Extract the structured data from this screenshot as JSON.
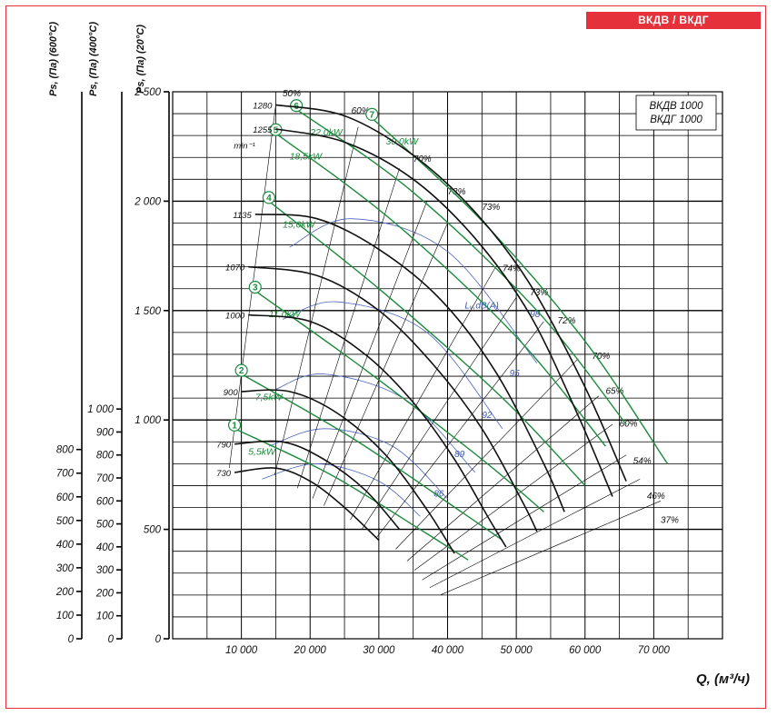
{
  "header_tag": "ВКДВ / ВКДГ",
  "chart_data": {
    "type": "line",
    "models": [
      "ВКДВ 1000",
      "ВКДГ 1000"
    ],
    "xlabel": "Q, (м³/ч)",
    "xlim": [
      0,
      80000
    ],
    "x_ticks": [
      10000,
      20000,
      30000,
      40000,
      50000,
      60000,
      70000
    ],
    "x_tick_labels": [
      "10 000",
      "20 000",
      "30 000",
      "40 000",
      "50 000",
      "60 000",
      "70 000"
    ],
    "ylim": [
      0,
      2500
    ],
    "y_axes": [
      {
        "title": "Ps, (Па) (20°C)",
        "ticks": [
          0,
          500,
          1000,
          1500,
          2000,
          2500
        ],
        "tick_labels": [
          "0",
          "500",
          "1 000",
          "1 500",
          "2 000",
          "2 500"
        ]
      },
      {
        "title": "Ps, (Па) (400°C)",
        "ticks": [
          0,
          100,
          200,
          300,
          400,
          500,
          600,
          700,
          800,
          900,
          1000
        ],
        "tick_labels": [
          "0",
          "100",
          "200",
          "300",
          "400",
          "500",
          "600",
          "700",
          "800",
          "900",
          "1 000"
        ]
      },
      {
        "title": "Ps, (Па) (600°C)",
        "ticks": [
          0,
          100,
          200,
          300,
          400,
          500,
          600,
          700,
          800
        ],
        "tick_labels": [
          "0",
          "100",
          "200",
          "300",
          "400",
          "500",
          "600",
          "700",
          "800"
        ]
      }
    ],
    "rpm_unit": "min⁻¹",
    "speed_curves": [
      {
        "rpm": "730",
        "points": [
          [
            9000,
            760
          ],
          [
            15000,
            780
          ],
          [
            20000,
            720
          ],
          [
            25000,
            600
          ],
          [
            30000,
            450
          ]
        ]
      },
      {
        "rpm": "790",
        "points": [
          [
            9000,
            890
          ],
          [
            16000,
            900
          ],
          [
            22000,
            820
          ],
          [
            28000,
            680
          ],
          [
            33000,
            500
          ]
        ]
      },
      {
        "rpm": "900",
        "points": [
          [
            10000,
            1130
          ],
          [
            17000,
            1130
          ],
          [
            24000,
            1030
          ],
          [
            31000,
            840
          ],
          [
            37000,
            590
          ],
          [
            41000,
            390
          ]
        ]
      },
      {
        "rpm": "1000",
        "points": [
          [
            11000,
            1480
          ],
          [
            20000,
            1450
          ],
          [
            28000,
            1300
          ],
          [
            35000,
            1080
          ],
          [
            41000,
            820
          ],
          [
            46000,
            550
          ],
          [
            48500,
            420
          ]
        ]
      },
      {
        "rpm": "1070",
        "points": [
          [
            11000,
            1700
          ],
          [
            21000,
            1660
          ],
          [
            30000,
            1500
          ],
          [
            38000,
            1250
          ],
          [
            45000,
            960
          ],
          [
            51000,
            620
          ],
          [
            53000,
            490
          ]
        ]
      },
      {
        "rpm": "1135",
        "points": [
          [
            12000,
            1940
          ],
          [
            21000,
            1920
          ],
          [
            30000,
            1780
          ],
          [
            39000,
            1550
          ],
          [
            47000,
            1220
          ],
          [
            54000,
            800
          ],
          [
            57000,
            580
          ]
        ]
      },
      {
        "rpm": "1255",
        "points": [
          [
            15000,
            2330
          ],
          [
            25000,
            2270
          ],
          [
            35000,
            2100
          ],
          [
            44000,
            1830
          ],
          [
            52000,
            1480
          ],
          [
            59000,
            1020
          ],
          [
            64000,
            650
          ]
        ]
      },
      {
        "rpm": "1280",
        "points": [
          [
            15000,
            2440
          ],
          [
            25000,
            2390
          ],
          [
            35000,
            2210
          ],
          [
            44000,
            1950
          ],
          [
            52000,
            1620
          ],
          [
            60000,
            1150
          ],
          [
            66000,
            720
          ]
        ]
      }
    ],
    "power_lines": [
      {
        "index": "1",
        "power": "5,5kW",
        "points": [
          [
            9000,
            960
          ],
          [
            23000,
            750
          ],
          [
            37000,
            480
          ],
          [
            43000,
            360
          ]
        ]
      },
      {
        "index": "2",
        "power": "7,5kW",
        "points": [
          [
            10000,
            1210
          ],
          [
            26000,
            920
          ],
          [
            42000,
            580
          ],
          [
            48000,
            450
          ]
        ]
      },
      {
        "index": "3",
        "power": "11,0kW",
        "points": [
          [
            12000,
            1590
          ],
          [
            28000,
            1230
          ],
          [
            45000,
            820
          ],
          [
            54000,
            580
          ]
        ]
      },
      {
        "index": "4",
        "power": "15,0kW",
        "points": [
          [
            14000,
            2000
          ],
          [
            30000,
            1600
          ],
          [
            48000,
            1100
          ],
          [
            60000,
            700
          ]
        ]
      },
      {
        "index": "5",
        "power": "18,5kW",
        "points": [
          [
            15000,
            2310
          ],
          [
            32000,
            1910
          ],
          [
            50000,
            1380
          ],
          [
            63000,
            880
          ]
        ]
      },
      {
        "index": "6",
        "power": "22,0kW",
        "points": [
          [
            18000,
            2420
          ],
          [
            35000,
            2040
          ],
          [
            53000,
            1500
          ],
          [
            66000,
            980
          ]
        ]
      },
      {
        "index": "7",
        "power": "30,0kW",
        "points": [
          [
            29000,
            2380
          ],
          [
            45000,
            1910
          ],
          [
            60000,
            1360
          ],
          [
            72000,
            800
          ]
        ]
      }
    ],
    "efficiency_labels": [
      "50%",
      "60%",
      "70%",
      "73%",
      "73%",
      "74%",
      "73%",
      "72%",
      "70%",
      "65%",
      "60%",
      "54%",
      "46%",
      "37%"
    ],
    "noise_label": "Lᵥ,dB(A)",
    "noise_levels": [
      "86",
      "89",
      "92",
      "95",
      "98"
    ]
  }
}
